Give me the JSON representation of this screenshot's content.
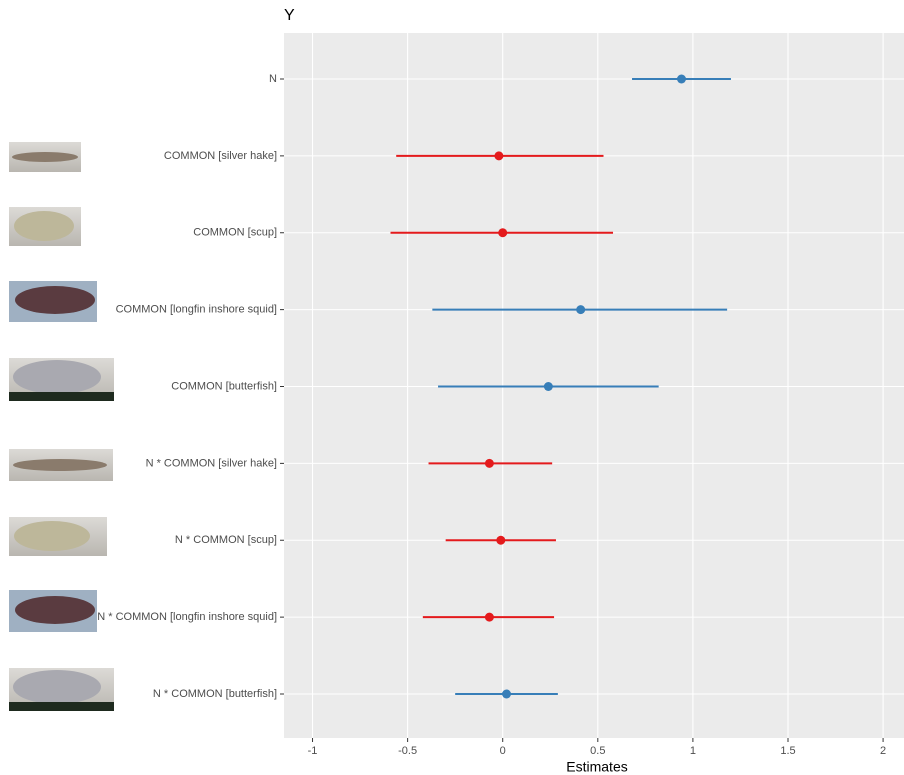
{
  "chart_data": {
    "type": "forest",
    "title": "Y",
    "x_label": "Estimates",
    "categories": [
      "N",
      "COMMON [silver hake]",
      "COMMON [scup]",
      "COMMON [longfin inshore squid]",
      "COMMON [butterfish]",
      "N * COMMON [silver hake]",
      "N * COMMON [scup]",
      "N * COMMON [longfin inshore squid]",
      "N * COMMON [butterfish]"
    ],
    "values": [
      0.94,
      -0.02,
      0,
      0.41,
      0.24,
      -0.07,
      -0.01,
      -0.07,
      0.02
    ],
    "lower": [
      0.68,
      -0.56,
      -0.59,
      -0.37,
      -0.34,
      -0.39,
      -0.3,
      -0.42,
      -0.25
    ],
    "upper": [
      1.2,
      0.53,
      0.58,
      1.18,
      0.82,
      0.26,
      0.28,
      0.27,
      0.29
    ],
    "colors": [
      "#377eb8",
      "#e41a1c",
      "#e41a1c",
      "#377eb8",
      "#377eb8",
      "#e41a1c",
      "#e41a1c",
      "#e41a1c",
      "#377eb8"
    ],
    "xlim": [
      -1.15,
      2.11
    ],
    "xticks": [
      -1,
      -0.5,
      0,
      0.5,
      1,
      1.5,
      2
    ],
    "grid": true
  }
}
